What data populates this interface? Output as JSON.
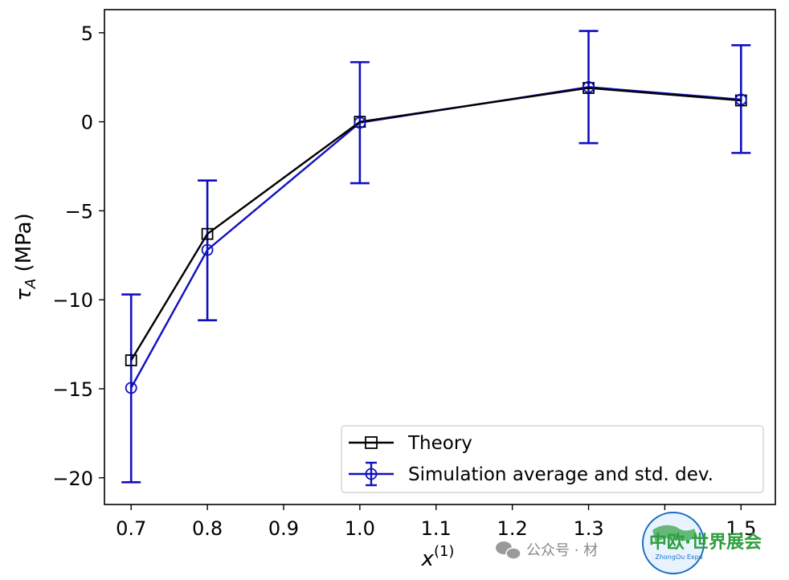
{
  "chart_data": {
    "type": "line",
    "x": [
      0.7,
      0.8,
      1.0,
      1.3,
      1.5
    ],
    "xticks": [
      "0.7",
      "0.8",
      "0.9",
      "1.0",
      "1.1",
      "1.2",
      "1.3",
      "1.4",
      "1.5"
    ],
    "yticks": [
      "5",
      "0",
      "−5",
      "−10",
      "−15",
      "−20"
    ],
    "xlim": [
      0.665,
      1.545
    ],
    "ylim": [
      -21.5,
      6.3
    ],
    "xlabel_main": "x",
    "xlabel_sup": "(1)",
    "ylabel_main": "τ",
    "ylabel_sub": "A",
    "ylabel_unit": " (MPa)",
    "grid": false,
    "legend_position": "lower right",
    "series": [
      {
        "name": "Theory",
        "color": "#000000",
        "marker": "square",
        "values": [
          -13.4,
          -6.3,
          0.0,
          1.9,
          1.2
        ]
      },
      {
        "name": "Simulation average and std. dev.",
        "color": "#1010c0",
        "marker": "circle",
        "values": [
          -14.95,
          -7.2,
          -0.05,
          1.95,
          1.25
        ],
        "error_lower": [
          -20.25,
          -11.15,
          -3.45,
          -1.2,
          -1.75
        ],
        "error_upper": [
          -9.7,
          -3.3,
          3.35,
          5.1,
          4.3
        ]
      }
    ]
  },
  "watermark": {
    "text": "公众号 · 材",
    "logo_text": "中欧·世界展会",
    "logo_subtext": "ZhongOu Expo",
    "colors": {
      "logo_green": "#2e9e3e",
      "logo_blue": "#1b6fc4",
      "logo_orange": "#e07a20"
    }
  }
}
